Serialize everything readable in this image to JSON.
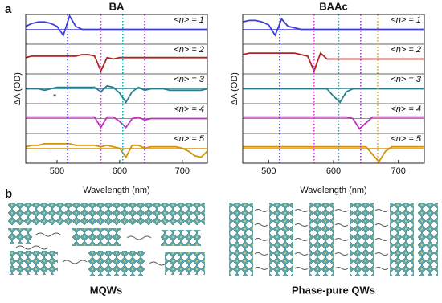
{
  "panel_labels": [
    "a",
    "b"
  ],
  "chart_data": [
    {
      "type": "line",
      "title": "BA",
      "xlabel": "Wavelength (nm)",
      "ylabel": "ΔA (OD)",
      "annotation": "*",
      "x": [
        450,
        460,
        470,
        480,
        490,
        500,
        510,
        520,
        530,
        540,
        550,
        560,
        570,
        580,
        590,
        600,
        610,
        620,
        630,
        640,
        650,
        660,
        670,
        680,
        690,
        700,
        710,
        720,
        730,
        740
      ],
      "xlim": [
        450,
        740
      ],
      "xticks": [
        500,
        600,
        700
      ],
      "ylim": [
        -1,
        1
      ],
      "vlines": [
        {
          "x": 517,
          "color": "#2a2ae0"
        },
        {
          "x": 570,
          "color": "#d030d0"
        },
        {
          "x": 605,
          "color": "#1aa0c0"
        },
        {
          "x": 640,
          "color": "#9030c0"
        }
      ],
      "series": [
        {
          "name": "<n> = 1",
          "color": "#3d3dd9",
          "values": [
            0.2,
            0.4,
            0.5,
            0.5,
            0.4,
            0.2,
            -0.4,
            0.9,
            0.2,
            0,
            0,
            0,
            0,
            0,
            0,
            0,
            0,
            0,
            0,
            0,
            0,
            0,
            0,
            0,
            0,
            0,
            0,
            0,
            0,
            0
          ]
        },
        {
          "name": "<n> = 2",
          "color": "#b22222",
          "values": [
            0.1,
            0.2,
            0.2,
            0.2,
            0.2,
            0.2,
            0.2,
            0.2,
            0.2,
            0.3,
            0.3,
            0.2,
            -0.8,
            0.1,
            0,
            0.1,
            0.1,
            0.1,
            0.1,
            0.1,
            0.1,
            0.1,
            0.1,
            0.1,
            0.1,
            0.1,
            0.1,
            0.1,
            0.1,
            0.1
          ]
        },
        {
          "name": "<n> = 3",
          "color": "#2a7f8c",
          "values": [
            0,
            0,
            0,
            -0.1,
            0,
            0.1,
            0.1,
            0.1,
            0.1,
            0.1,
            0.1,
            0.1,
            -0.2,
            0.2,
            0.1,
            -0.3,
            -0.9,
            -0.2,
            0.1,
            -0.1,
            0,
            0,
            0,
            -0.1,
            -0.1,
            -0.1,
            -0.1,
            -0.1,
            -0.1,
            0
          ]
        },
        {
          "name": "<n> = 4",
          "color": "#c030c0",
          "values": [
            0.1,
            0.1,
            0.1,
            0.1,
            0.1,
            0.1,
            0.1,
            0.1,
            0.1,
            0.1,
            0.1,
            0.1,
            -0.6,
            0.1,
            0.1,
            -0.2,
            -0.6,
            0,
            0.1,
            -0.1,
            0,
            0,
            0,
            0,
            0,
            0,
            0,
            0,
            0,
            0
          ]
        },
        {
          "name": "<n> = 5",
          "color": "#d4920a",
          "values": [
            0.1,
            0.2,
            0.2,
            0.3,
            0.3,
            0.3,
            0.3,
            0.3,
            0.2,
            0.2,
            0.2,
            0.2,
            0.1,
            0.2,
            0.1,
            0,
            -0.6,
            0.2,
            0.2,
            0,
            0.1,
            0.1,
            0.1,
            0.1,
            0.1,
            0,
            -0.2,
            -0.5,
            -0.6,
            -0.2
          ]
        }
      ]
    },
    {
      "type": "line",
      "title": "BAAc",
      "xlabel": "Wavelength (nm)",
      "ylabel": "ΔA (OD)",
      "x": [
        460,
        470,
        480,
        490,
        500,
        510,
        520,
        530,
        540,
        550,
        560,
        570,
        580,
        590,
        600,
        610,
        620,
        630,
        640,
        650,
        660,
        670,
        680,
        690,
        700,
        710,
        720,
        730,
        740
      ],
      "xlim": [
        460,
        740
      ],
      "xticks": [
        500,
        600,
        700
      ],
      "ylim": [
        -1,
        1
      ],
      "vlines": [
        {
          "x": 517,
          "color": "#2a2ae0"
        },
        {
          "x": 570,
          "color": "#d030d0"
        },
        {
          "x": 608,
          "color": "#1aa0c0"
        },
        {
          "x": 642,
          "color": "#9030c0"
        },
        {
          "x": 668,
          "color": "#d4a020"
        }
      ],
      "series": [
        {
          "name": "<n> = 1",
          "color": "#3d3dd9",
          "values": [
            0.5,
            0.6,
            0.6,
            0.5,
            0.3,
            -0.4,
            0.7,
            0.2,
            0.1,
            0,
            0,
            0,
            0,
            0,
            0,
            0,
            0,
            0,
            0,
            0,
            0,
            0,
            0,
            0,
            0,
            0,
            0,
            0,
            0
          ]
        },
        {
          "name": "<n> = 2",
          "color": "#b22222",
          "values": [
            0.3,
            0.4,
            0.4,
            0.4,
            0.4,
            0.4,
            0.4,
            0.4,
            0.4,
            0.3,
            0.2,
            -0.8,
            0.4,
            0,
            0,
            0,
            0,
            0,
            0,
            0,
            0,
            0,
            0,
            0,
            0,
            0,
            0,
            0,
            0
          ]
        },
        {
          "name": "<n> = 3",
          "color": "#2a7f8c",
          "values": [
            0,
            0,
            0,
            0,
            0,
            0,
            0,
            0,
            0,
            0,
            0,
            0,
            0,
            0,
            -0.5,
            -0.9,
            -0.2,
            0,
            0,
            0,
            0,
            0,
            0,
            0,
            0,
            0,
            0,
            0,
            0
          ]
        },
        {
          "name": "<n> = 4",
          "color": "#c030c0",
          "values": [
            0.1,
            0.1,
            0.1,
            0.1,
            0.1,
            0.1,
            0.1,
            0.1,
            0.1,
            0.1,
            0.1,
            0.1,
            0.1,
            0.1,
            0.1,
            0.1,
            0.1,
            0,
            -0.7,
            -0.3,
            0.1,
            0.1,
            0.1,
            0.1,
            0.1,
            0.1,
            0.1,
            0.1,
            0.1
          ]
        },
        {
          "name": "<n> = 5",
          "color": "#d4920a",
          "values": [
            0.1,
            0.1,
            0.1,
            0.1,
            0.1,
            0.1,
            0.1,
            0.1,
            0.1,
            0.1,
            0.1,
            0.1,
            0.1,
            0.1,
            0.1,
            0.1,
            0.1,
            0.1,
            0.1,
            0.1,
            -0.4,
            -0.9,
            -0.2,
            0.1,
            0.1,
            0.1,
            0.1,
            0.1,
            0.1
          ]
        }
      ]
    }
  ],
  "structures": [
    {
      "label": "MQWs"
    },
    {
      "label": "Phase-pure QWs"
    }
  ]
}
